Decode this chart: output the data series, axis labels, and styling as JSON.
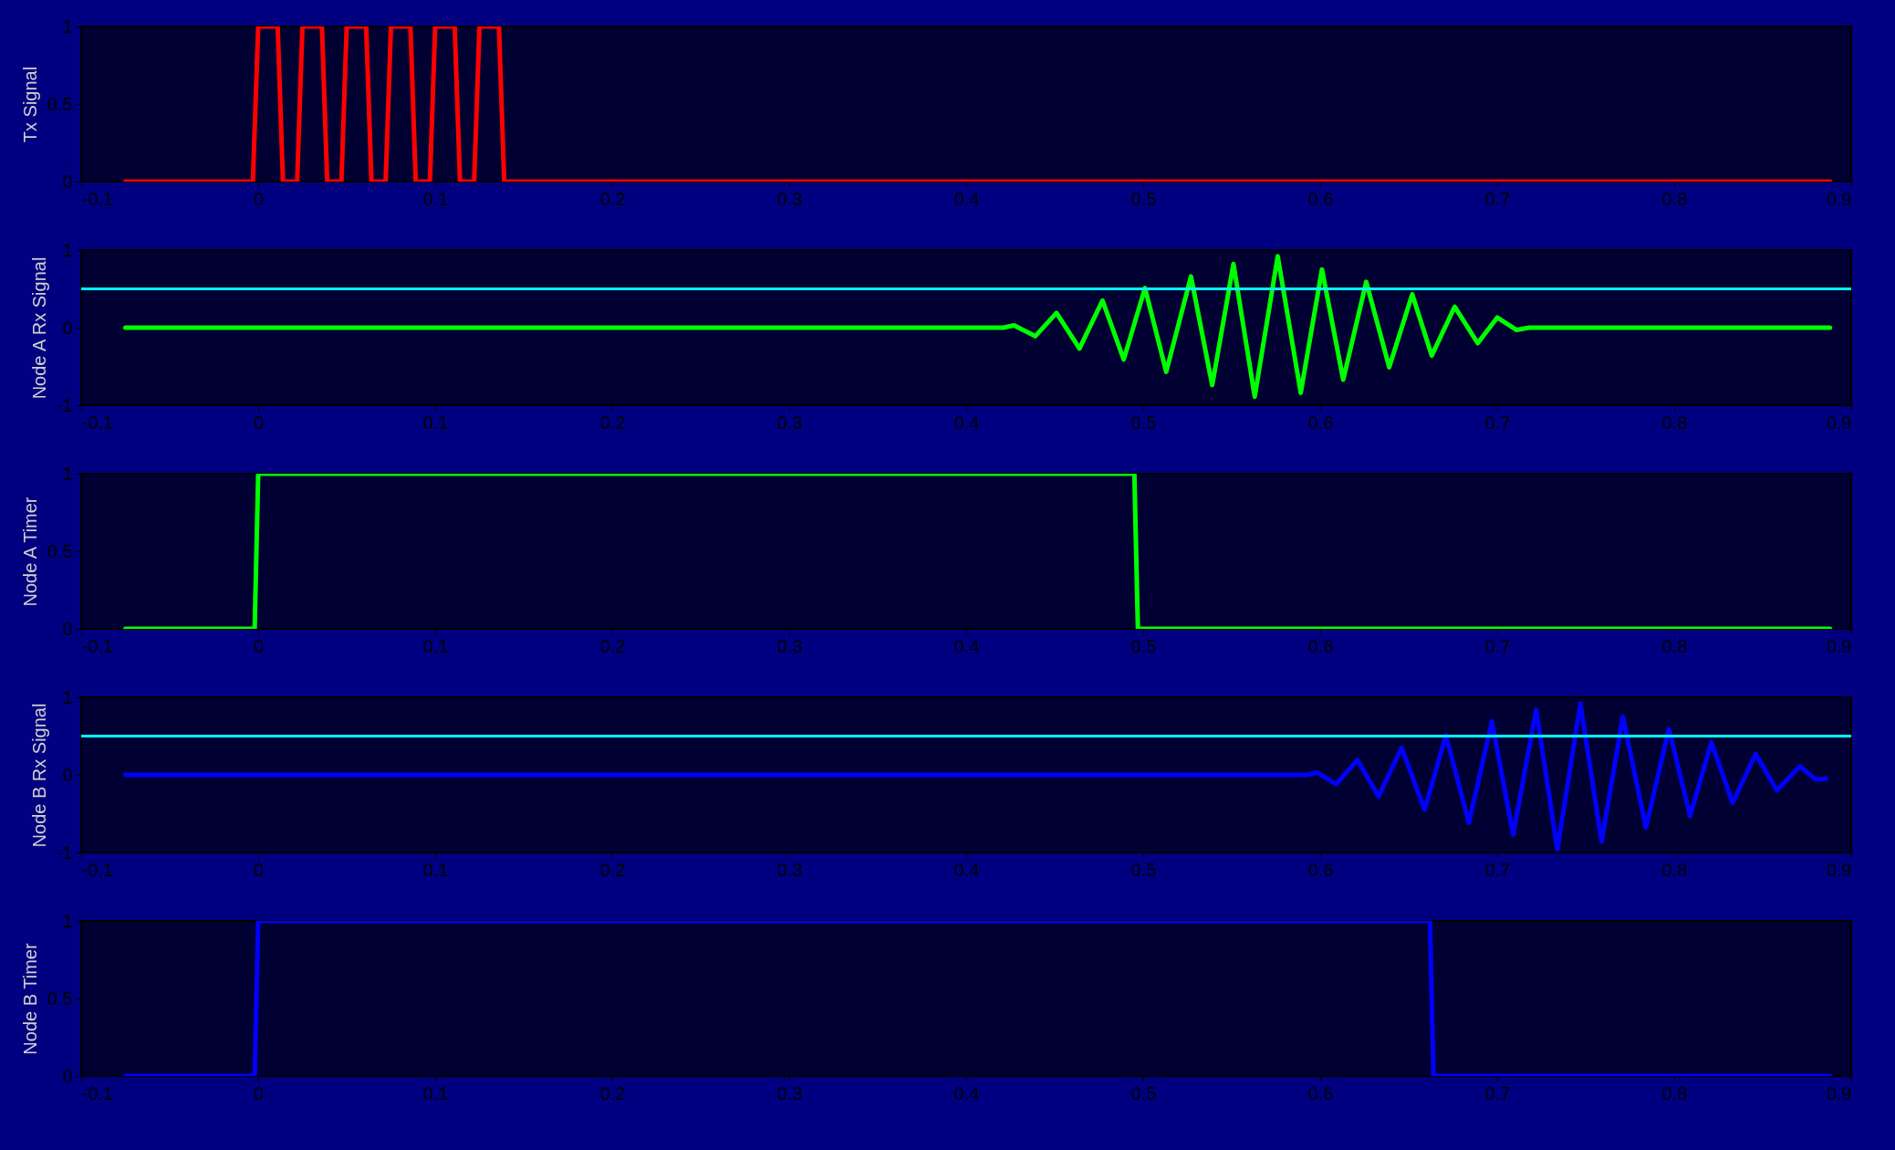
{
  "chart_data": [
    {
      "type": "line",
      "ylabel": "Tx Signal",
      "xlim": [
        -0.1,
        0.9
      ],
      "xticks": [
        -0.1,
        0,
        0.1,
        0.2,
        0.3,
        0.4,
        0.5,
        0.6,
        0.7,
        0.8,
        0.9
      ],
      "ylim": [
        0,
        1
      ],
      "yticks": [
        0,
        0.5,
        1
      ],
      "grid": false,
      "line_style": "solid",
      "marker": "none",
      "series": [
        {
          "color": "#ff0000",
          "x": [
            -0.075,
            -0.003,
            0.0,
            0.011,
            0.014,
            0.022,
            0.025,
            0.036,
            0.039,
            0.047,
            0.05,
            0.061,
            0.064,
            0.072,
            0.075,
            0.086,
            0.089,
            0.097,
            0.1,
            0.111,
            0.114,
            0.122,
            0.125,
            0.136,
            0.139,
            0.888
          ],
          "values": [
            0,
            0,
            1,
            1,
            0,
            0,
            1,
            1,
            0,
            0,
            1,
            1,
            0,
            0,
            1,
            1,
            0,
            0,
            1,
            1,
            0,
            0,
            1,
            1,
            0,
            0
          ]
        }
      ]
    },
    {
      "type": "line",
      "ylabel": "Node A Rx Signal",
      "xlim": [
        -0.1,
        0.9
      ],
      "xticks": [
        -0.1,
        0,
        0.1,
        0.2,
        0.3,
        0.4,
        0.5,
        0.6,
        0.7,
        0.8,
        0.9
      ],
      "ylim": [
        -1,
        1
      ],
      "yticks": [
        -1,
        0,
        1
      ],
      "grid": false,
      "line_style": "solid",
      "marker": "none",
      "ref_lines": [
        {
          "axis": "y",
          "value": 0.5,
          "color": "#00ffff"
        }
      ],
      "series": [
        {
          "color": "#00ff00",
          "x": [
            -0.075,
            0.421,
            0.427,
            0.439,
            0.451,
            0.464,
            0.477,
            0.489,
            0.501,
            0.513,
            0.527,
            0.539,
            0.551,
            0.563,
            0.576,
            0.589,
            0.601,
            0.613,
            0.626,
            0.639,
            0.652,
            0.663,
            0.676,
            0.689,
            0.7,
            0.711,
            0.718,
            0.888
          ],
          "values": [
            0,
            0,
            0.03,
            -0.11,
            0.19,
            -0.27,
            0.35,
            -0.41,
            0.51,
            -0.57,
            0.66,
            -0.74,
            0.82,
            -0.89,
            0.92,
            -0.84,
            0.75,
            -0.67,
            0.59,
            -0.51,
            0.43,
            -0.36,
            0.27,
            -0.2,
            0.13,
            -0.03,
            0,
            0
          ]
        }
      ]
    },
    {
      "type": "line",
      "ylabel": "Node A Timer",
      "xlim": [
        -0.1,
        0.9
      ],
      "xticks": [
        -0.1,
        0,
        0.1,
        0.2,
        0.3,
        0.4,
        0.5,
        0.6,
        0.7,
        0.8,
        0.9
      ],
      "ylim": [
        0,
        1
      ],
      "yticks": [
        0,
        0.5,
        1
      ],
      "grid": false,
      "line_style": "solid",
      "marker": "none",
      "series": [
        {
          "color": "#00ff00",
          "x": [
            -0.075,
            -0.002,
            0.0,
            0.495,
            0.497,
            0.888
          ],
          "values": [
            0,
            0,
            1,
            1,
            0,
            0
          ]
        }
      ]
    },
    {
      "type": "line",
      "ylabel": "Node B Rx Signal",
      "xlim": [
        -0.1,
        0.9
      ],
      "xticks": [
        -0.1,
        0,
        0.1,
        0.2,
        0.3,
        0.4,
        0.5,
        0.6,
        0.7,
        0.8,
        0.9
      ],
      "ylim": [
        -1,
        1
      ],
      "yticks": [
        -1,
        0,
        1
      ],
      "grid": false,
      "line_style": "solid",
      "marker": "none",
      "ref_lines": [
        {
          "axis": "y",
          "value": 0.5,
          "color": "#00ffff"
        }
      ],
      "series": [
        {
          "color": "#0000ff",
          "x": [
            -0.075,
            0.593,
            0.598,
            0.609,
            0.621,
            0.633,
            0.646,
            0.659,
            0.671,
            0.684,
            0.697,
            0.709,
            0.722,
            0.734,
            0.747,
            0.759,
            0.771,
            0.784,
            0.797,
            0.809,
            0.821,
            0.833,
            0.846,
            0.858,
            0.871,
            0.88,
            0.886
          ],
          "values": [
            0,
            0,
            0.03,
            -0.12,
            0.19,
            -0.28,
            0.35,
            -0.45,
            0.51,
            -0.62,
            0.69,
            -0.77,
            0.84,
            -0.96,
            0.92,
            -0.86,
            0.75,
            -0.68,
            0.59,
            -0.53,
            0.42,
            -0.36,
            0.27,
            -0.2,
            0.11,
            -0.06,
            -0.05
          ]
        }
      ]
    },
    {
      "type": "line",
      "ylabel": "Node B Timer",
      "xlim": [
        -0.1,
        0.9
      ],
      "xticks": [
        -0.1,
        0,
        0.1,
        0.2,
        0.3,
        0.4,
        0.5,
        0.6,
        0.7,
        0.8,
        0.9
      ],
      "ylim": [
        0,
        1
      ],
      "yticks": [
        0,
        0.5,
        1
      ],
      "grid": false,
      "line_style": "solid",
      "marker": "none",
      "series": [
        {
          "color": "#0000ff",
          "x": [
            -0.075,
            -0.002,
            0.0,
            0.662,
            0.664,
            0.888
          ],
          "values": [
            0,
            0,
            1,
            1,
            0,
            0
          ]
        }
      ]
    }
  ]
}
